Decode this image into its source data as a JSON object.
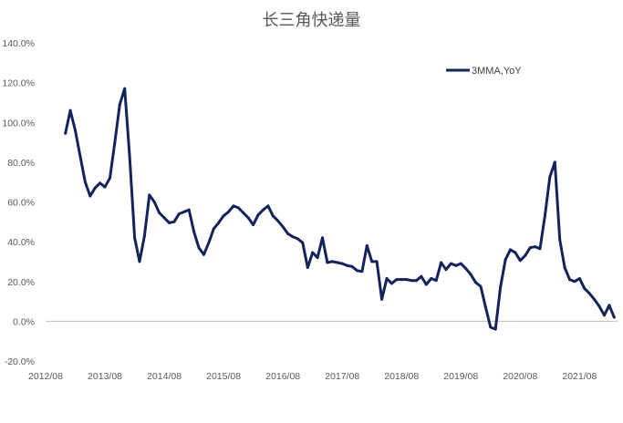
{
  "chart_data": {
    "type": "line",
    "title": "长三角快递量",
    "xlabel": "",
    "ylabel": "",
    "ylim": [
      -20,
      140
    ],
    "y_ticks": [
      -20,
      0,
      20,
      40,
      60,
      80,
      100,
      120,
      140
    ],
    "y_tick_labels": [
      "-20.0%",
      "0.0%",
      "20.0%",
      "40.0%",
      "60.0%",
      "80.0%",
      "100.0%",
      "120.0%",
      "140.0%"
    ],
    "x_tick_labels": [
      "2012/08",
      "2013/08",
      "2014/08",
      "2015/08",
      "2016/08",
      "2017/08",
      "2018/08",
      "2019/08",
      "2020/08",
      "2021/08"
    ],
    "x_first": "2012/08",
    "grid": false,
    "legend_position": "top-right",
    "series": [
      {
        "name": "3MMA,YoY",
        "color": "#14245a",
        "start": "2012/12",
        "values": [
          94.5,
          106,
          96,
          83,
          70,
          63,
          67,
          69.5,
          67.5,
          72,
          90,
          109,
          117,
          83,
          42,
          30,
          43,
          63.5,
          60,
          54.5,
          52,
          49.5,
          50,
          54,
          55,
          56,
          45,
          37,
          33.5,
          39.5,
          46.5,
          49.5,
          53,
          55,
          58,
          57,
          54.5,
          52,
          48.5,
          53.5,
          56,
          58,
          53,
          50.5,
          47.5,
          44,
          42.5,
          41.5,
          39.5,
          27,
          34.5,
          32,
          42,
          29.5,
          30,
          29.5,
          29,
          28,
          27.5,
          25.5,
          25,
          38,
          30,
          30,
          11,
          21.5,
          19,
          21,
          21,
          21,
          20.5,
          20.5,
          22.5,
          18.5,
          21.5,
          20.5,
          29.5,
          26,
          29,
          28,
          29,
          26.5,
          23.5,
          19.5,
          17.5,
          7,
          -3,
          -4,
          17,
          31,
          36,
          34.5,
          30.5,
          33,
          37,
          37.5,
          36.5,
          53,
          72.5,
          80,
          41,
          27,
          21,
          20,
          21.5,
          16.5,
          14,
          11,
          7.5,
          3,
          8,
          2
        ]
      }
    ]
  }
}
